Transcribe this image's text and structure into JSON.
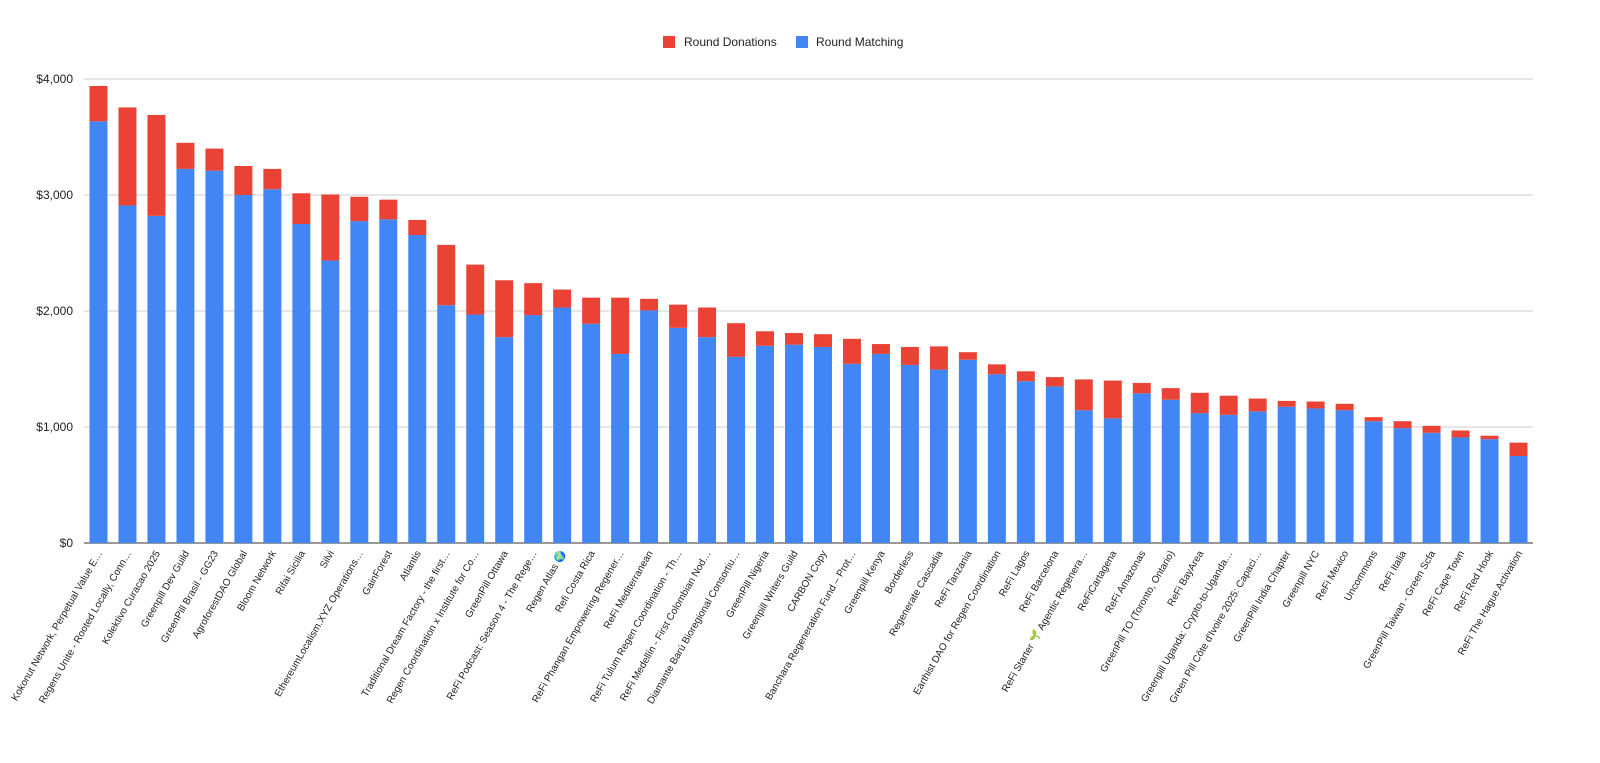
{
  "chart_data": {
    "type": "bar",
    "stacked": true,
    "title": "",
    "xlabel": "",
    "ylabel": "",
    "ylim": [
      0,
      4000
    ],
    "y_ticks": [
      0,
      1000,
      2000,
      3000,
      4000
    ],
    "y_tick_labels": [
      "$0",
      "$1,000",
      "$2,000",
      "$3,000",
      "$4,000"
    ],
    "grid": true,
    "legend_position": "top-center",
    "categories": [
      "Kokonut Network, Perpetual Value E…",
      "Regens Unite - Rooted Locally, Conn…",
      "Kolektivo Curacao 2025",
      "Greenpill Dev Guild",
      "GreenPill Brasil - GG23",
      "AgroforestDAO Global",
      "Bloom Network",
      "Rifai Sicilia",
      "Silvi",
      "EthereumLocalism.XYZ Operations…",
      "GainForest",
      "Atlantis",
      "Traditional Dream Factory - the first…",
      "Regen Coordination x Institute for Co…",
      "GreenPill Ottawa",
      "ReFi Podcast: Season 4 - The Rege…",
      "Regen Atlas 🌍",
      "Refi Costa Rica",
      "ReFi Phangan Empowering Regener…",
      "ReFi Mediterranean",
      "ReFi Tulum Regen Coordination - Th…",
      "ReFi Medellín - First Colombian Nod…",
      "Diamante Barú Bioregional Consortiu…",
      "GreenPill Nigeria",
      "Greenpill Writers Guild",
      "CARBON Copy",
      "Banchara Regeneration Fund – Prot…",
      "Greenpill Kenya",
      "Borderless",
      "Regenerate Cascadia",
      "ReFi Tanzania",
      "Earthist DAO for Regen Coordination",
      "ReFi Lagos",
      "ReFi Barcelona",
      "ReFi Starter 🌱 Agentic Regenera…",
      "ReFiCartagena",
      "ReFi Amazonas",
      "GreenPill TO (Toronto, Ontario)",
      "ReFi BayArea",
      "Greenpill Uganda: Crypto-to-Uganda…",
      "Green Pill Côte d'Ivoire 2025: Capaci…",
      "GreenPill India Chapter",
      "Greenpill NYC",
      "ReFi Mexico",
      "Uncommons",
      "ReFi Italia",
      "GreenPill Taiwan - Green Scfa",
      "ReFi Cape Town",
      "ReFi Red Hook",
      "ReFi The Hague Activation"
    ],
    "series": [
      {
        "name": "Round Matching",
        "color": "#4285f4",
        "values": [
          3635,
          2910,
          2820,
          3225,
          3210,
          3000,
          3050,
          2750,
          2435,
          2775,
          2790,
          2655,
          2050,
          1970,
          1775,
          1965,
          2030,
          1890,
          1630,
          2005,
          1855,
          1775,
          1605,
          1700,
          1710,
          1690,
          1545,
          1630,
          1535,
          1495,
          1580,
          1455,
          1395,
          1350,
          1145,
          1075,
          1290,
          1235,
          1120,
          1105,
          1135,
          1175,
          1160,
          1145,
          1050,
          990,
          950,
          910,
          895,
          750
        ]
      },
      {
        "name": "Round Donations",
        "color": "#ea4335",
        "values": [
          305,
          845,
          870,
          225,
          190,
          250,
          175,
          265,
          570,
          210,
          170,
          130,
          520,
          430,
          490,
          275,
          155,
          225,
          485,
          100,
          200,
          255,
          290,
          125,
          100,
          110,
          215,
          85,
          155,
          200,
          65,
          85,
          85,
          80,
          265,
          325,
          90,
          100,
          175,
          165,
          110,
          50,
          60,
          55,
          35,
          60,
          60,
          60,
          30,
          115
        ]
      }
    ],
    "legend": [
      {
        "name": "Round Donations",
        "color": "#ea4335"
      },
      {
        "name": "Round Matching",
        "color": "#4285f4"
      }
    ]
  }
}
